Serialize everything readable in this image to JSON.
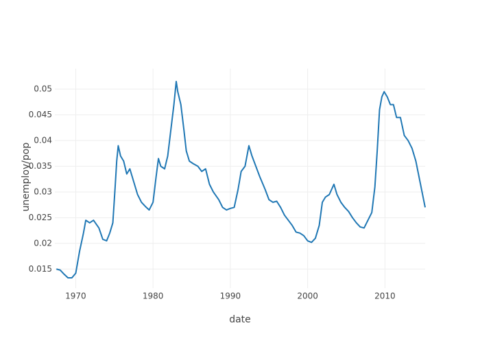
{
  "chart_data": {
    "type": "line",
    "x_label": "date",
    "y_label": "unemploy/pop",
    "x": [
      1967.5,
      1968,
      1968.5,
      1969,
      1969.5,
      1970,
      1970.5,
      1971,
      1971.3,
      1971.8,
      1972.3,
      1973,
      1973.5,
      1974,
      1974.4,
      1974.8,
      1975.1,
      1975.3,
      1975.5,
      1975.8,
      1976.2,
      1976.6,
      1977,
      1977.5,
      1978,
      1978.5,
      1979,
      1979.5,
      1980,
      1980.4,
      1980.7,
      1981,
      1981.5,
      1981.9,
      1982.3,
      1982.7,
      1983,
      1983.2,
      1983.6,
      1984,
      1984.3,
      1984.7,
      1985.2,
      1985.8,
      1986.3,
      1986.8,
      1987.3,
      1987.8,
      1988.5,
      1989,
      1989.5,
      1990,
      1990.5,
      1991,
      1991.4,
      1991.9,
      1992.4,
      1992.8,
      1993.3,
      1993.8,
      1994.5,
      1995,
      1995.5,
      1996,
      1996.5,
      1997,
      1997.5,
      1998,
      1998.5,
      1999,
      1999.5,
      2000,
      2000.5,
      2001,
      2001.5,
      2001.9,
      2002.3,
      2002.8,
      2003.4,
      2003.8,
      2004.3,
      2004.8,
      2005.3,
      2005.8,
      2006.3,
      2006.8,
      2007.3,
      2007.8,
      2008.3,
      2008.7,
      2009,
      2009.3,
      2009.6,
      2009.9,
      2010.3,
      2010.7,
      2011.1,
      2011.5,
      2012,
      2012.5,
      2013,
      2013.5,
      2014,
      2014.4,
      2014.8,
      2015.2
    ],
    "series": [
      {
        "name": "unemploy/pop",
        "color": "#1f77b4",
        "values": [
          0.015,
          0.0148,
          0.014,
          0.0133,
          0.0133,
          0.0142,
          0.0185,
          0.022,
          0.0245,
          0.024,
          0.0245,
          0.023,
          0.0208,
          0.0205,
          0.022,
          0.024,
          0.031,
          0.036,
          0.039,
          0.037,
          0.036,
          0.0335,
          0.0345,
          0.032,
          0.0295,
          0.028,
          0.0272,
          0.0265,
          0.028,
          0.033,
          0.0365,
          0.035,
          0.0345,
          0.037,
          0.042,
          0.047,
          0.0515,
          0.0495,
          0.047,
          0.042,
          0.038,
          0.036,
          0.0355,
          0.035,
          0.034,
          0.0345,
          0.0315,
          0.03,
          0.0285,
          0.027,
          0.0265,
          0.0268,
          0.027,
          0.0305,
          0.034,
          0.035,
          0.039,
          0.037,
          0.035,
          0.033,
          0.0305,
          0.0285,
          0.028,
          0.0282,
          0.027,
          0.0255,
          0.0245,
          0.0235,
          0.0222,
          0.022,
          0.0215,
          0.0205,
          0.0202,
          0.021,
          0.0235,
          0.028,
          0.029,
          0.0295,
          0.0315,
          0.0295,
          0.028,
          0.027,
          0.0262,
          0.025,
          0.024,
          0.0232,
          0.023,
          0.0245,
          0.026,
          0.031,
          0.038,
          0.046,
          0.0485,
          0.0495,
          0.0485,
          0.047,
          0.047,
          0.0445,
          0.0445,
          0.041,
          0.04,
          0.0385,
          0.036,
          0.033,
          0.03,
          0.027
        ]
      }
    ],
    "xlim": [
      1967.3,
      2015.2
    ],
    "xticks": [
      1970,
      1980,
      1990,
      2000,
      2010
    ],
    "ylim": [
      0.0113,
      0.054
    ],
    "yticks": [
      0.015,
      0.02,
      0.025,
      0.03,
      0.035,
      0.04,
      0.045,
      0.05
    ],
    "grid": true
  }
}
